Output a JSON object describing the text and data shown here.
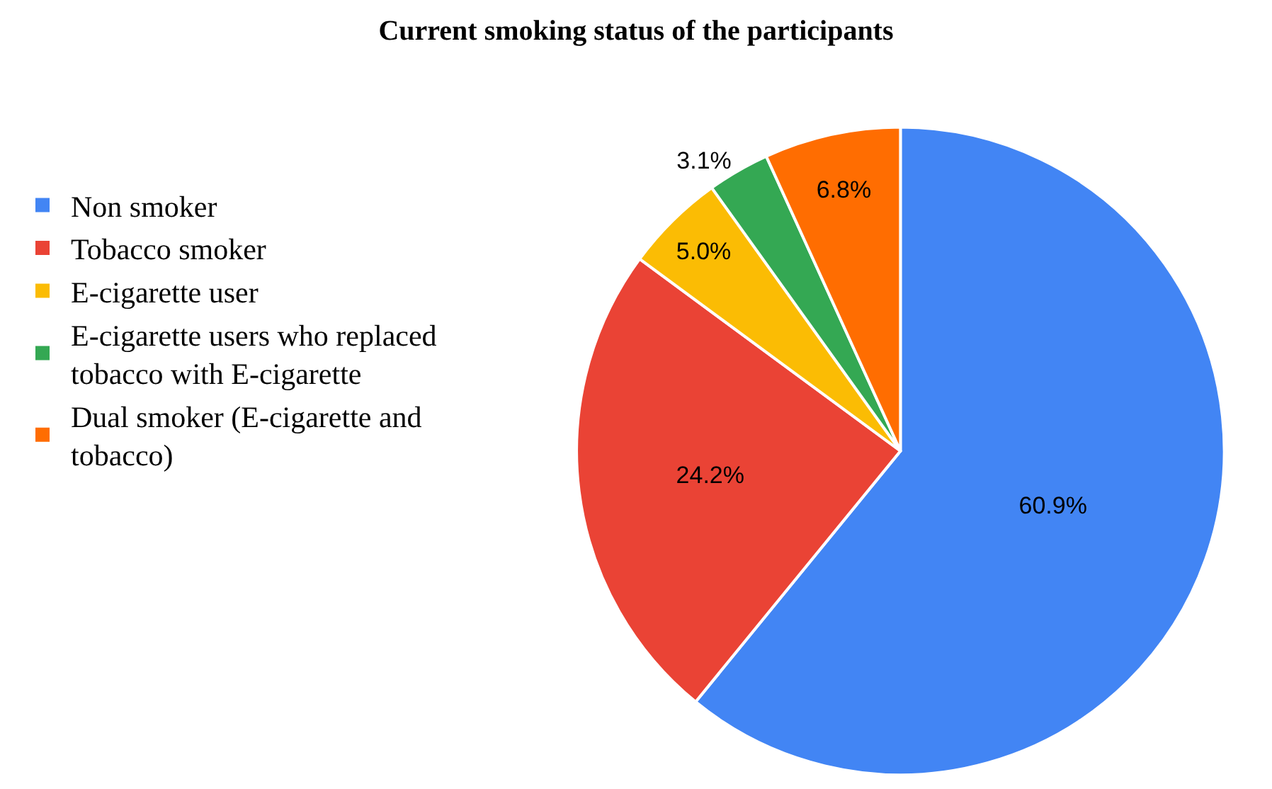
{
  "chart_data": {
    "type": "pie",
    "title": "Current smoking status of the participants",
    "categories": [
      "Non smoker",
      "Tobacco smoker",
      "E-cigarette user",
      "E-cigarette users who replaced tobacco with E-cigarette",
      "Dual smoker (E-cigarette and tobacco)"
    ],
    "values": [
      60.9,
      24.2,
      5.0,
      3.1,
      6.8
    ],
    "value_labels": [
      "60.9%",
      "24.2%",
      "5.0%",
      "3.1%",
      "6.8%"
    ],
    "colors": [
      "#4285f4",
      "#ea4335",
      "#fbbc04",
      "#34a853",
      "#ff6d01"
    ],
    "legend": "left"
  }
}
